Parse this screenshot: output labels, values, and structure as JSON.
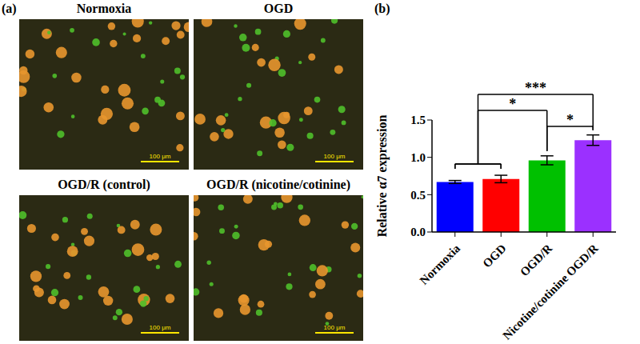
{
  "figure": {
    "panel_a": {
      "label": "(a)",
      "images": [
        {
          "title": "Normoxia",
          "scale_bar": "100 μm"
        },
        {
          "title": "OGD",
          "scale_bar": "100 μm"
        },
        {
          "title": "OGD/R (control)",
          "scale_bar": "100 μm"
        },
        {
          "title": "OGD/R (nicotine/cotinine)",
          "scale_bar": "100 μm"
        }
      ]
    },
    "panel_b_label": "(b)"
  },
  "chart_data": {
    "type": "bar",
    "y_label": "Relative α7 expression",
    "categories": [
      "Normoxia",
      "OGD",
      "OGD/R",
      "Nicotine/cotinine OGD/R"
    ],
    "values": [
      0.67,
      0.71,
      0.96,
      1.23
    ],
    "errors": [
      0.02,
      0.05,
      0.06,
      0.07
    ],
    "colors": [
      "#0000ff",
      "#ff0000",
      "#00c000",
      "#9b30ff"
    ],
    "ylim": [
      0,
      1.5
    ],
    "yticks": [
      {
        "value": 0,
        "label": "0.0"
      },
      {
        "value": 0.5,
        "label": "0.5"
      },
      {
        "value": 1,
        "label": "1.0"
      },
      {
        "value": 1.5,
        "label": "1.5"
      }
    ],
    "grid": false,
    "annotations": [
      {
        "text": "*",
        "from": [
          "OGD/R"
        ],
        "to": [
          "Nicotine/cotinine OGD/R"
        ]
      },
      {
        "text": "*",
        "from": [
          "Normoxia",
          "OGD"
        ],
        "to": [
          "OGD/R"
        ]
      },
      {
        "text": "***",
        "from": [
          "Normoxia",
          "OGD"
        ],
        "to": [
          "Nicotine/cotinine OGD/R"
        ]
      }
    ]
  }
}
